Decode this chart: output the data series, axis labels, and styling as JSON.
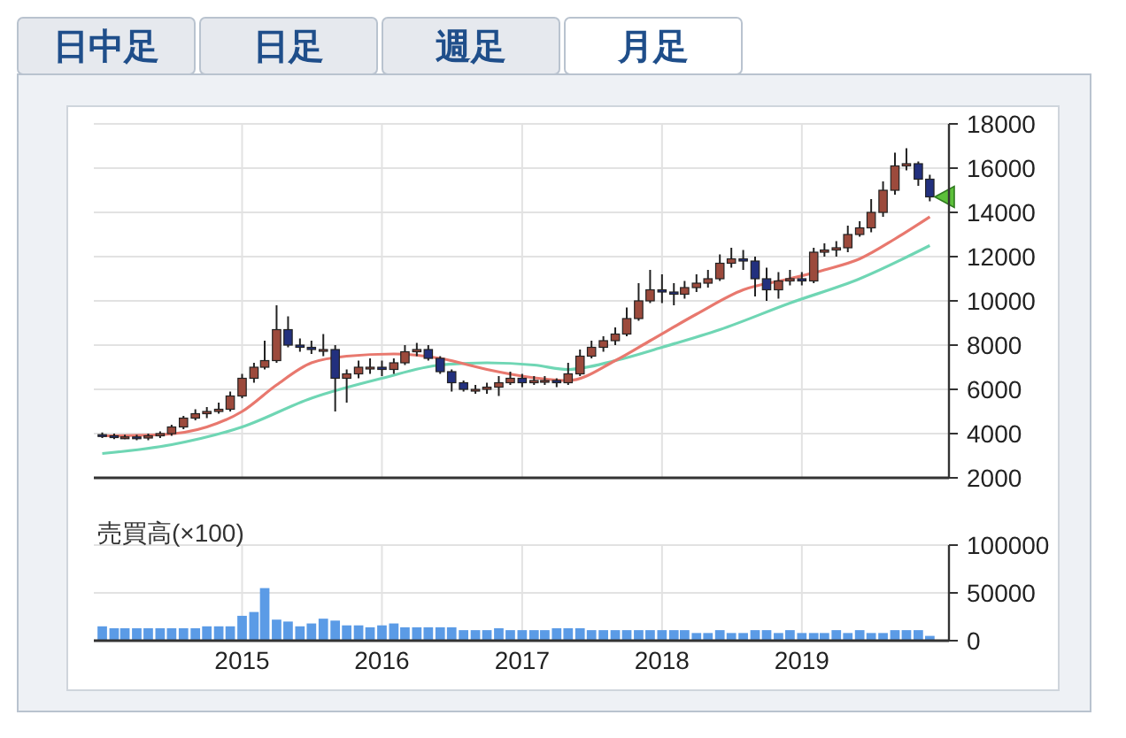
{
  "chart_data": [
    {
      "type": "candlestick",
      "annotations": [
        "日中足",
        "日足",
        "週足",
        "月足"
      ],
      "x": [
        "2014-01",
        "2014-02",
        "2014-03",
        "2014-04",
        "2014-05",
        "2014-06",
        "2014-07",
        "2014-08",
        "2014-09",
        "2014-10",
        "2014-11",
        "2014-12",
        "2015-01",
        "2015-02",
        "2015-03",
        "2015-04",
        "2015-05",
        "2015-06",
        "2015-07",
        "2015-08",
        "2015-09",
        "2015-10",
        "2015-11",
        "2015-12",
        "2016-01",
        "2016-02",
        "2016-03",
        "2016-04",
        "2016-05",
        "2016-06",
        "2016-07",
        "2016-08",
        "2016-09",
        "2016-10",
        "2016-11",
        "2016-12",
        "2017-01",
        "2017-02",
        "2017-03",
        "2017-04",
        "2017-05",
        "2017-06",
        "2017-07",
        "2017-08",
        "2017-09",
        "2017-10",
        "2017-11",
        "2017-12",
        "2018-01",
        "2018-02",
        "2018-03",
        "2018-04",
        "2018-05",
        "2018-06",
        "2018-07",
        "2018-08",
        "2018-09",
        "2018-10",
        "2018-11",
        "2018-12",
        "2019-01",
        "2019-02",
        "2019-03",
        "2019-04",
        "2019-05",
        "2019-06",
        "2019-07",
        "2019-08",
        "2019-09",
        "2019-10",
        "2019-11",
        "2019-12"
      ],
      "ohlc": [
        [
          3950,
          4050,
          3800,
          3900
        ],
        [
          3900,
          4000,
          3750,
          3850
        ],
        [
          3850,
          3950,
          3750,
          3850
        ],
        [
          3850,
          3950,
          3700,
          3800
        ],
        [
          3800,
          4000,
          3700,
          3900
        ],
        [
          3900,
          4100,
          3800,
          4000
        ],
        [
          4000,
          4400,
          3900,
          4300
        ],
        [
          4300,
          4800,
          4200,
          4700
        ],
        [
          4700,
          5100,
          4600,
          4900
        ],
        [
          4900,
          5200,
          4700,
          5000
        ],
        [
          5000,
          5400,
          4900,
          5100
        ],
        [
          5100,
          5900,
          5000,
          5700
        ],
        [
          5700,
          6700,
          5600,
          6500
        ],
        [
          6500,
          7200,
          6300,
          7000
        ],
        [
          7000,
          8200,
          6900,
          7300
        ],
        [
          7300,
          9800,
          7200,
          8700
        ],
        [
          8700,
          9300,
          7900,
          8000
        ],
        [
          8000,
          8300,
          7700,
          7900
        ],
        [
          7900,
          8200,
          7600,
          7800
        ],
        [
          7800,
          8500,
          7500,
          7800
        ],
        [
          7800,
          8000,
          5000,
          6500
        ],
        [
          6500,
          6900,
          5400,
          6700
        ],
        [
          6700,
          7300,
          6500,
          7000
        ],
        [
          7000,
          7400,
          6700,
          7000
        ],
        [
          7000,
          7300,
          6600,
          6900
        ],
        [
          6900,
          7400,
          6700,
          7200
        ],
        [
          7200,
          8000,
          7100,
          7700
        ],
        [
          7700,
          8100,
          7500,
          7800
        ],
        [
          7800,
          8000,
          7300,
          7400
        ],
        [
          7400,
          7500,
          6700,
          6800
        ],
        [
          6800,
          6900,
          5900,
          6300
        ],
        [
          6300,
          6400,
          5900,
          6000
        ],
        [
          6000,
          6200,
          5800,
          6000
        ],
        [
          6000,
          6300,
          5800,
          6100
        ],
        [
          6100,
          6600,
          5700,
          6300
        ],
        [
          6300,
          6800,
          6200,
          6500
        ],
        [
          6500,
          6700,
          6100,
          6300
        ],
        [
          6300,
          6600,
          6200,
          6400
        ],
        [
          6400,
          6600,
          6200,
          6400
        ],
        [
          6400,
          6500,
          6100,
          6300
        ],
        [
          6300,
          7200,
          6200,
          6700
        ],
        [
          6700,
          7800,
          6600,
          7500
        ],
        [
          7500,
          8200,
          7400,
          7900
        ],
        [
          7900,
          8400,
          7700,
          8200
        ],
        [
          8200,
          8800,
          8000,
          8500
        ],
        [
          8500,
          9700,
          8400,
          9200
        ],
        [
          9200,
          10800,
          9100,
          10000
        ],
        [
          10000,
          11400,
          9900,
          10500
        ],
        [
          10500,
          11200,
          9900,
          10400
        ],
        [
          10400,
          10800,
          9800,
          10300
        ],
        [
          10300,
          10900,
          10100,
          10600
        ],
        [
          10600,
          11200,
          10400,
          10800
        ],
        [
          10800,
          11400,
          10600,
          11000
        ],
        [
          11000,
          12100,
          10900,
          11700
        ],
        [
          11700,
          12400,
          11500,
          11900
        ],
        [
          11900,
          12300,
          11400,
          11800
        ],
        [
          11800,
          12000,
          10200,
          11000
        ],
        [
          11000,
          11500,
          10000,
          10500
        ],
        [
          10500,
          11300,
          10100,
          10900
        ],
        [
          10900,
          11400,
          10700,
          11000
        ],
        [
          11000,
          11300,
          10700,
          10900
        ],
        [
          10900,
          12400,
          10800,
          12200
        ],
        [
          12200,
          12600,
          12000,
          12300
        ],
        [
          12300,
          12700,
          12000,
          12400
        ],
        [
          12400,
          13400,
          12200,
          13000
        ],
        [
          13000,
          13600,
          12900,
          13300
        ],
        [
          13300,
          14600,
          13100,
          14000
        ],
        [
          14000,
          15400,
          13800,
          15000
        ],
        [
          15000,
          16700,
          14800,
          16100
        ],
        [
          16100,
          16900,
          15900,
          16200
        ],
        [
          16200,
          16300,
          15200,
          15500
        ],
        [
          15500,
          15700,
          14500,
          14700
        ]
      ],
      "series": [
        {
          "type": "line",
          "color": "#e8786e",
          "x": [
            "2014-01",
            "2014-06",
            "2014-10",
            "2015-01",
            "2015-04",
            "2015-07",
            "2015-10",
            "2016-02",
            "2016-06",
            "2016-10",
            "2017-01",
            "2017-05",
            "2017-09",
            "2017-12",
            "2018-04",
            "2018-08",
            "2018-12",
            "2019-03",
            "2019-06",
            "2019-09",
            "2019-12"
          ],
          "values": [
            3900,
            3950,
            4300,
            5000,
            6200,
            7200,
            7500,
            7600,
            7400,
            6900,
            6600,
            6400,
            7300,
            8200,
            9400,
            10500,
            11000,
            11400,
            11900,
            12800,
            13800
          ]
        },
        {
          "type": "line",
          "color": "#6fd6b4",
          "x": [
            "2014-01",
            "2014-07",
            "2015-01",
            "2015-07",
            "2016-01",
            "2016-06",
            "2016-10",
            "2017-02",
            "2017-05",
            "2017-09",
            "2018-01",
            "2018-06",
            "2018-12",
            "2019-06",
            "2019-12"
          ],
          "values": [
            3100,
            3500,
            4300,
            5600,
            6500,
            7100,
            7200,
            7100,
            6900,
            7300,
            7900,
            8700,
            9900,
            11000,
            12500
          ]
        }
      ],
      "xlim": [
        "2013-12-10",
        "2020-01-20"
      ],
      "xticks": [
        "2015",
        "2016",
        "2017",
        "2018",
        "2019"
      ],
      "ylim": [
        2000,
        18000
      ],
      "yticks": [
        2000,
        4000,
        6000,
        8000,
        10000,
        12000,
        14000,
        16000,
        18000
      ],
      "grid": true,
      "tick_labels": "y"
    },
    {
      "type": "bar",
      "title": "売買高(×100)",
      "color": "#5b9be6",
      "x": [
        "2014-01",
        "2014-02",
        "2014-03",
        "2014-04",
        "2014-05",
        "2014-06",
        "2014-07",
        "2014-08",
        "2014-09",
        "2014-10",
        "2014-11",
        "2014-12",
        "2015-01",
        "2015-02",
        "2015-03",
        "2015-04",
        "2015-05",
        "2015-06",
        "2015-07",
        "2015-08",
        "2015-09",
        "2015-10",
        "2015-11",
        "2015-12",
        "2016-01",
        "2016-02",
        "2016-03",
        "2016-04",
        "2016-05",
        "2016-06",
        "2016-07",
        "2016-08",
        "2016-09",
        "2016-10",
        "2016-11",
        "2016-12",
        "2017-01",
        "2017-02",
        "2017-03",
        "2017-04",
        "2017-05",
        "2017-06",
        "2017-07",
        "2017-08",
        "2017-09",
        "2017-10",
        "2017-11",
        "2017-12",
        "2018-01",
        "2018-02",
        "2018-03",
        "2018-04",
        "2018-05",
        "2018-06",
        "2018-07",
        "2018-08",
        "2018-09",
        "2018-10",
        "2018-11",
        "2018-12",
        "2019-01",
        "2019-02",
        "2019-03",
        "2019-04",
        "2019-05",
        "2019-06",
        "2019-07",
        "2019-08",
        "2019-09",
        "2019-10",
        "2019-11",
        "2019-12"
      ],
      "values": [
        15000,
        13000,
        13000,
        13000,
        13000,
        13000,
        13000,
        13000,
        13000,
        15000,
        15000,
        15000,
        26000,
        30000,
        55000,
        22000,
        20000,
        15000,
        18000,
        23000,
        21000,
        16000,
        16000,
        14000,
        16000,
        18000,
        14000,
        14000,
        14000,
        14000,
        14000,
        11000,
        11000,
        11000,
        13000,
        11000,
        11000,
        11000,
        11000,
        13000,
        13000,
        13000,
        11000,
        11000,
        11000,
        11000,
        11000,
        11000,
        11000,
        11000,
        11000,
        8000,
        8000,
        11000,
        8000,
        8000,
        11000,
        11000,
        8000,
        11000,
        8000,
        8000,
        8000,
        11000,
        8000,
        11000,
        8000,
        8000,
        11000,
        11000,
        11000,
        5000
      ],
      "xlim": [
        "2013-12-10",
        "2020-01-20"
      ],
      "xticks": [
        "2015",
        "2016",
        "2017",
        "2018",
        "2019"
      ],
      "ylim": [
        0,
        100000
      ],
      "yticks": [
        0,
        50000,
        100000
      ],
      "grid": true
    }
  ]
}
